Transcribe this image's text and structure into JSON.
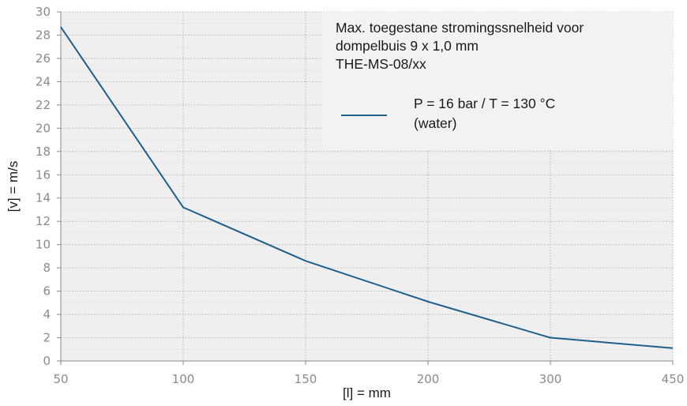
{
  "chart_data": {
    "type": "line",
    "title_lines": [
      "Max. toegestane stromingssnelheid voor",
      "dompelbuis 9 x 1,0 mm",
      "THE-MS-08/xx"
    ],
    "xlabel": "[l] = mm",
    "ylabel": "[v] = m/s",
    "x_ticks": [
      "50",
      "100",
      "150",
      "200",
      "300",
      "450"
    ],
    "y_ticks": [
      0,
      2,
      4,
      6,
      8,
      10,
      12,
      14,
      16,
      18,
      20,
      22,
      24,
      26,
      28,
      30
    ],
    "ylim": [
      0,
      30
    ],
    "grid": true,
    "legend_placement": "top-right",
    "series": [
      {
        "name_lines": [
          "P = 16 bar  /  T = 130 °C",
          "(water)"
        ],
        "color": "#1f5f8b",
        "points": [
          {
            "x": "50",
            "y": 28.7
          },
          {
            "x": "100",
            "y": 13.2
          },
          {
            "x": "150",
            "y": 8.6
          },
          {
            "x": "200",
            "y": 5.1
          },
          {
            "x": "300",
            "y": 2.0
          },
          {
            "x": "450",
            "y": 1.1
          }
        ]
      }
    ]
  },
  "colors": {
    "plot_background": "#efefef",
    "legend_background": "#f2f2f2",
    "grid": "#a8a8a8",
    "axis": "#8a8a8a"
  }
}
